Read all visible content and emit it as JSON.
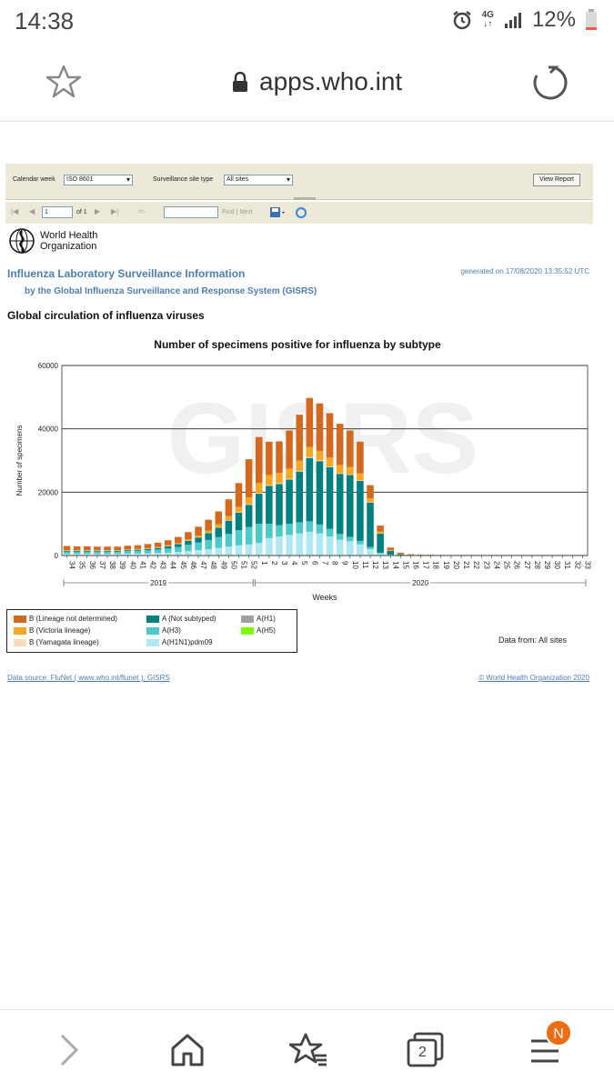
{
  "status": {
    "time": "14:38",
    "network": "4G",
    "battery": "12%"
  },
  "browser": {
    "url": "apps.who.int",
    "tab_count": "2",
    "badge": "N"
  },
  "report_toolbar": {
    "calendar_label": "Calendar week",
    "calendar_value": "ISO 8601",
    "site_label": "Surveillance site type",
    "site_value": "All sites",
    "view_button": "View Report",
    "page_value": "1",
    "page_of": "of 1",
    "find_label": "Find | Next"
  },
  "header": {
    "org": "World Health",
    "org2": "Organization",
    "title": "Influenza Laboratory Surveillance Information",
    "subtitle": "by the Global Influenza Surveillance and Response System (GISRS)",
    "generated": "generated on 17/08/2020 13:35:52 UTC",
    "section": "Global circulation of influenza viruses"
  },
  "chart_data": {
    "type": "bar",
    "stacked": true,
    "title": "Number of specimens positive for influenza by subtype",
    "xlabel": "Weeks",
    "ylabel": "Number of specimens",
    "watermark": "GISRS",
    "ylim": [
      0,
      60000
    ],
    "yticks": [
      "0",
      "20000",
      "40000",
      "60000"
    ],
    "year_labels": [
      "2019",
      "2020"
    ],
    "categories": [
      "34",
      "35",
      "36",
      "37",
      "38",
      "39",
      "40",
      "41",
      "42",
      "43",
      "44",
      "45",
      "46",
      "47",
      "48",
      "49",
      "50",
      "51",
      "52",
      "1",
      "2",
      "3",
      "4",
      "5",
      "6",
      "7",
      "8",
      "9",
      "10",
      "11",
      "12",
      "13",
      "14",
      "15",
      "16",
      "17",
      "18",
      "19",
      "20",
      "21",
      "22",
      "23",
      "24",
      "25",
      "26",
      "27",
      "28",
      "29",
      "30",
      "31",
      "32",
      "33"
    ],
    "series": [
      {
        "name": "A(H1N1)pdm09",
        "color": "#aee8f0",
        "values": [
          500,
          500,
          500,
          500,
          500,
          500,
          600,
          600,
          700,
          800,
          900,
          1100,
          1400,
          1700,
          2000,
          2400,
          2800,
          3200,
          3500,
          4000,
          5500,
          6000,
          6500,
          7000,
          7500,
          7000,
          6000,
          5000,
          4500,
          3500,
          2000,
          600,
          200,
          100,
          50,
          50,
          50,
          30,
          30,
          30,
          30,
          30,
          30,
          30,
          30,
          30,
          30,
          30,
          30,
          30,
          30,
          30
        ]
      },
      {
        "name": "A(H3)",
        "color": "#4cc9c9",
        "values": [
          700,
          700,
          700,
          700,
          700,
          700,
          800,
          900,
          1000,
          1100,
          1300,
          1600,
          2000,
          2400,
          2900,
          3400,
          4000,
          4800,
          5500,
          6000,
          4500,
          3600,
          3500,
          3500,
          3300,
          2800,
          2400,
          1800,
          1400,
          1100,
          700,
          300,
          100,
          60,
          30,
          30,
          30,
          20,
          20,
          20,
          20,
          20,
          20,
          20,
          20,
          20,
          20,
          20,
          20,
          20,
          20,
          20
        ]
      },
      {
        "name": "A(H1)",
        "color": "#a0a0a0",
        "values": [
          0,
          0,
          0,
          0,
          0,
          0,
          0,
          0,
          0,
          0,
          0,
          0,
          0,
          0,
          0,
          0,
          0,
          0,
          0,
          0,
          0,
          0,
          0,
          0,
          0,
          0,
          0,
          0,
          0,
          0,
          0,
          0,
          0,
          0,
          0,
          0,
          0,
          0,
          0,
          0,
          0,
          0,
          0,
          0,
          0,
          0,
          0,
          0,
          0,
          0,
          0,
          0
        ]
      },
      {
        "name": "A(H5)",
        "color": "#7cfc00",
        "values": [
          0,
          0,
          0,
          0,
          0,
          0,
          0,
          0,
          0,
          0,
          0,
          0,
          0,
          0,
          0,
          0,
          0,
          0,
          0,
          0,
          0,
          0,
          0,
          0,
          0,
          0,
          0,
          0,
          0,
          0,
          0,
          0,
          0,
          0,
          0,
          0,
          0,
          0,
          0,
          0,
          0,
          0,
          0,
          0,
          0,
          0,
          0,
          0,
          0,
          0,
          0,
          0
        ]
      },
      {
        "name": "A (Not subtyped)",
        "color": "#008080",
        "values": [
          300,
          300,
          300,
          300,
          300,
          300,
          300,
          350,
          400,
          500,
          700,
          900,
          1200,
          1600,
          2200,
          3000,
          4200,
          5500,
          7000,
          9500,
          12000,
          13000,
          14000,
          16000,
          20000,
          20000,
          19500,
          19000,
          19500,
          19000,
          14000,
          6000,
          1200,
          300,
          100,
          80,
          60,
          50,
          40,
          40,
          40,
          40,
          40,
          40,
          40,
          40,
          40,
          40,
          40,
          40,
          40,
          40
        ]
      },
      {
        "name": "B (Yamagata lineage)",
        "color": "#fbdcb8",
        "values": [
          50,
          50,
          50,
          50,
          50,
          50,
          50,
          50,
          50,
          60,
          60,
          70,
          80,
          90,
          100,
          120,
          140,
          160,
          180,
          200,
          220,
          250,
          260,
          260,
          250,
          240,
          220,
          200,
          180,
          150,
          100,
          50,
          20,
          10,
          10,
          5,
          5,
          5,
          5,
          5,
          5,
          5,
          5,
          5,
          5,
          5,
          5,
          5,
          5,
          5,
          5,
          5
        ]
      },
      {
        "name": "B (Victoria lineage)",
        "color": "#f5a623",
        "values": [
          150,
          150,
          150,
          150,
          150,
          150,
          150,
          160,
          180,
          200,
          250,
          300,
          400,
          500,
          700,
          900,
          1300,
          1700,
          2200,
          3200,
          3200,
          3200,
          3200,
          3200,
          3200,
          3000,
          2800,
          2600,
          2400,
          2200,
          1300,
          600,
          150,
          80,
          40,
          30,
          20,
          20,
          20,
          20,
          20,
          20,
          20,
          20,
          20,
          20,
          20,
          20,
          20,
          20,
          20,
          20
        ]
      },
      {
        "name": "B (Lineage not determined)",
        "color": "#d2691e",
        "values": [
          1300,
          1200,
          1200,
          1100,
          1100,
          1100,
          1200,
          1200,
          1300,
          1400,
          1600,
          1900,
          2300,
          2800,
          3400,
          4100,
          5300,
          7500,
          12000,
          14500,
          10500,
          10000,
          12000,
          14500,
          15500,
          15000,
          14000,
          13000,
          11500,
          10000,
          4100,
          1900,
          850,
          350,
          170,
          100,
          80,
          60,
          60,
          60,
          50,
          50,
          50,
          50,
          50,
          50,
          50,
          50,
          50,
          50,
          50,
          50
        ]
      }
    ],
    "legend_note": "Data from: All sites",
    "grid": "horizontal"
  },
  "footer": {
    "source": "Data source: FluNet ( www.who.int/flunet ), GISRS",
    "copyright": "© World Health Organization 2020"
  }
}
